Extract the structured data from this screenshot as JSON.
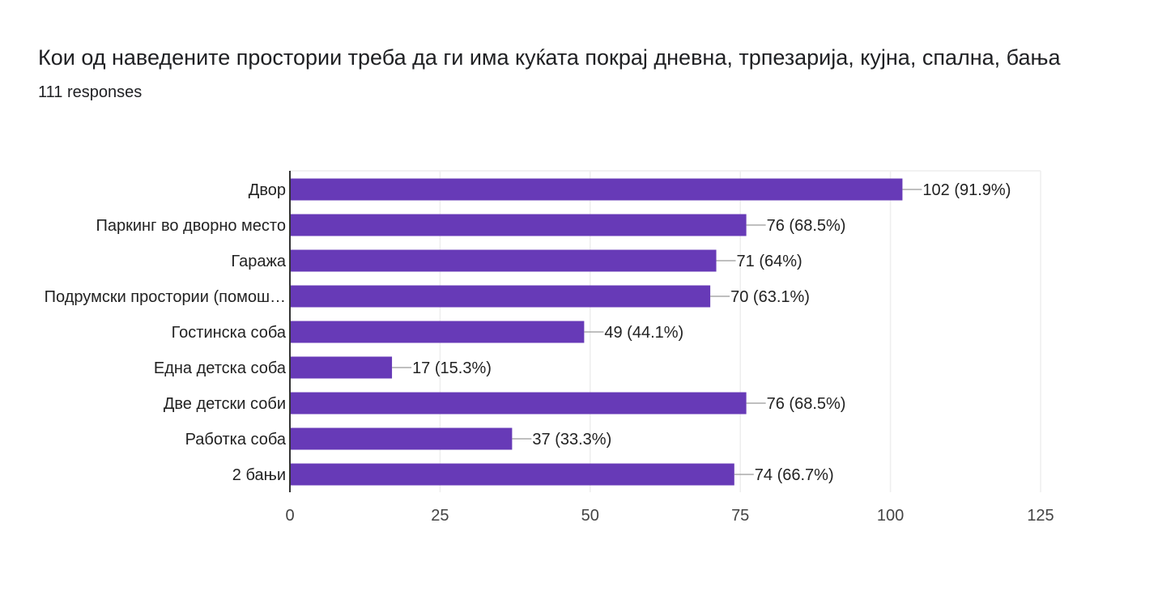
{
  "question": {
    "title": "Кои од наведените простории треба да ги има куќата покрај дневна, трпезарија, кујна, спална, бања",
    "responses": "111 responses"
  },
  "chart_data": {
    "type": "bar",
    "orientation": "horizontal",
    "categories": [
      "Двор",
      "Паркинг во дворно место",
      "Гаража",
      "Подрумски простории (помош…",
      "Гостинска соба",
      "Една детска соба",
      "Две детски соби",
      "Работка соба",
      "2 бањи"
    ],
    "values": [
      102,
      76,
      71,
      70,
      49,
      17,
      76,
      37,
      74
    ],
    "data_labels": [
      "102 (91.9%)",
      "76 (68.5%)",
      "71 (64%)",
      "70 (63.1%)",
      "49 (44.1%)",
      "17 (15.3%)",
      "76 (68.5%)",
      "37 (33.3%)",
      "74 (66.7%)"
    ],
    "xlim": [
      0,
      125
    ],
    "xticks": [
      "0",
      "25",
      "50",
      "75",
      "100",
      "125"
    ],
    "grid": true,
    "bar_color": "#673ab7",
    "title": "",
    "xlabel": "",
    "ylabel": ""
  }
}
